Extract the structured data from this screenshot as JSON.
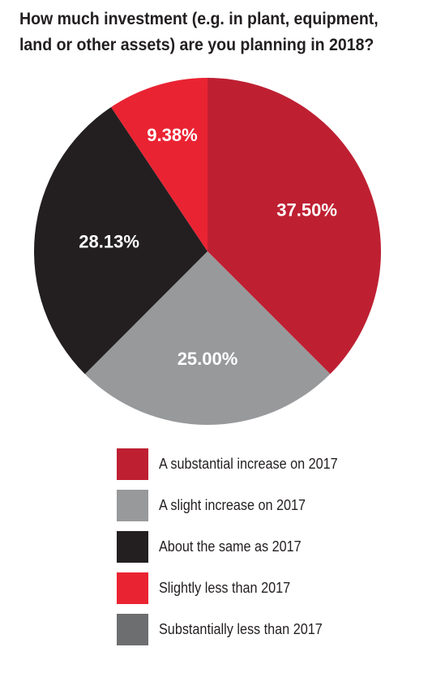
{
  "chart_data": {
    "type": "pie",
    "title": "How much investment (e.g. in plant, equipment, land or other assets) are you planning in 2018?",
    "slices": [
      {
        "name": "A substantial increase on 2017",
        "value": 37.5,
        "label": "37.50%",
        "color": "#be2032"
      },
      {
        "name": "A slight increase on 2017",
        "value": 25.0,
        "label": "25.00%",
        "color": "#98999b"
      },
      {
        "name": "About the same as 2017",
        "value": 28.13,
        "label": "28.13%",
        "color": "#231f20"
      },
      {
        "name": "Slightly less than 2017",
        "value": 9.38,
        "label": "9.38%",
        "color": "#ea2333"
      },
      {
        "name": "Substantially less than 2017",
        "value": 0,
        "label": "",
        "color": "#6d6e70"
      }
    ],
    "legend_position": "bottom"
  }
}
